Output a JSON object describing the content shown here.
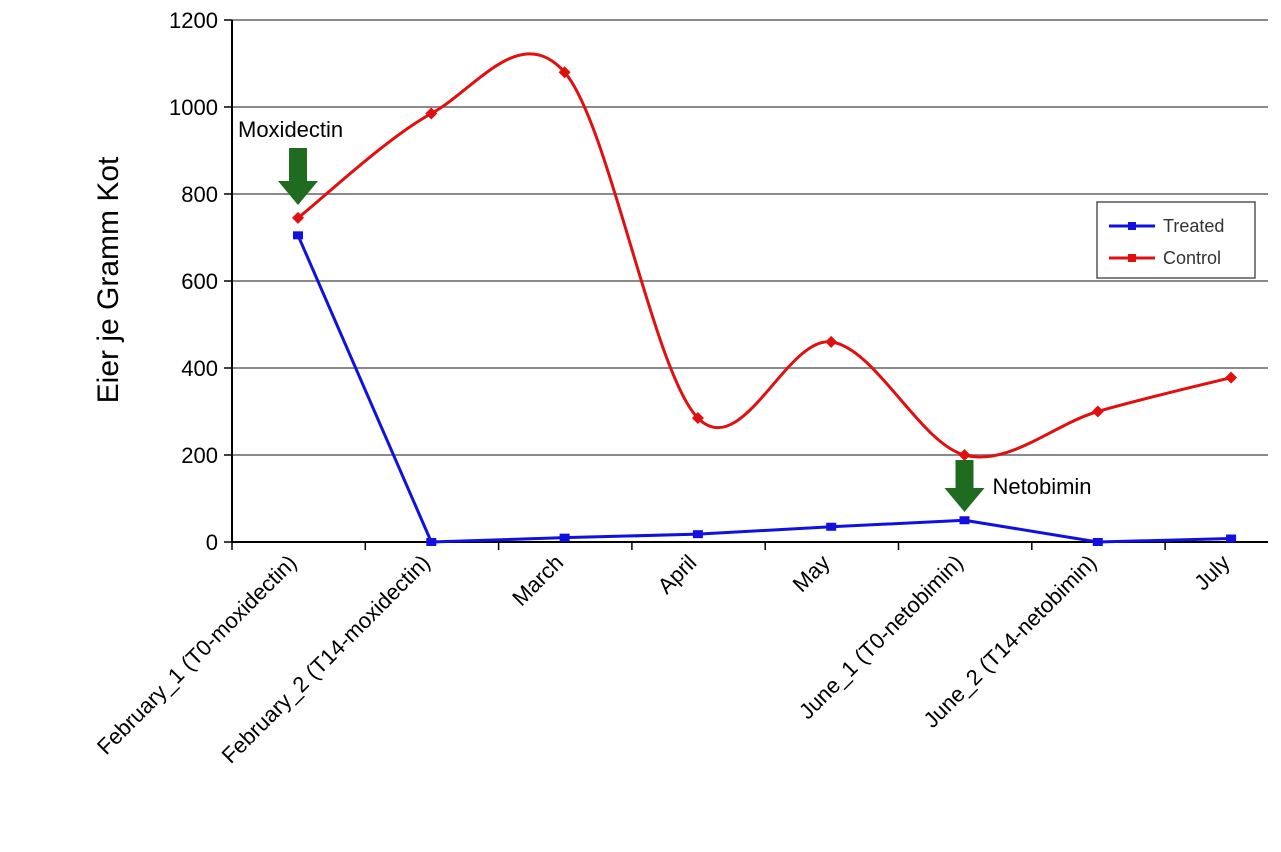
{
  "chart_data": {
    "type": "line",
    "title": "",
    "xlabel": "",
    "ylabel": "Eier je Gramm Kot",
    "categories": [
      "February_1 (T0-moxidectin)",
      "February_2 (T14-moxidectin)",
      "March",
      "April",
      "May",
      "June_1 (T0-netobimin)",
      "June_2 (T14-netobimin)",
      "July"
    ],
    "ylim": [
      0,
      1200
    ],
    "yticks": [
      0,
      200,
      400,
      600,
      800,
      1000,
      1200
    ],
    "grid": "horizontal",
    "legend_position": "right",
    "series": [
      {
        "name": "Treated",
        "color": "#1010e0",
        "smooth": false,
        "values": [
          705,
          0,
          10,
          18,
          35,
          50,
          0,
          8
        ]
      },
      {
        "name": "Control",
        "color": "#e01010",
        "smooth": true,
        "values": [
          745,
          985,
          1080,
          285,
          460,
          200,
          300,
          378
        ]
      }
    ],
    "annotations": [
      {
        "text": "Moxidectin",
        "category_index": 0,
        "arrow_color": "#1f6b1f"
      },
      {
        "text": "Netobimin",
        "category_index": 5,
        "arrow_color": "#1f6b1f"
      }
    ]
  }
}
